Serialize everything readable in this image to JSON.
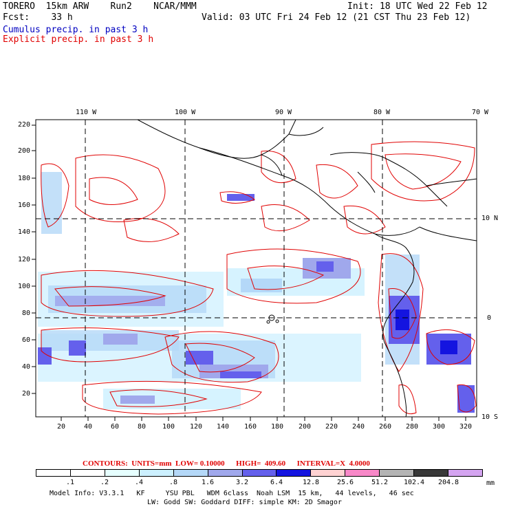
{
  "header": {
    "model_line": "TORERO  15km ARW    Run2    NCAR/MMM",
    "init_line": "Init: 18 UTC Wed 22 Feb 12",
    "fcst_line": "Fcst:    33 h",
    "valid_line": "Valid: 03 UTC Fri 24 Feb 12 (21 CST Thu 23 Feb 12)",
    "legend_cumulus": "Cumulus precip. in past 3 h",
    "legend_explicit": "Explicit precip. in past 3 h"
  },
  "map": {
    "top_longitude_labels": [
      "110 W",
      "100 W",
      "90 W",
      "80 W",
      "70 W"
    ],
    "right_latitude_labels": [
      "10 N",
      "0",
      "10 S"
    ],
    "y_grid_labels": [
      "220",
      "200",
      "180",
      "160",
      "140",
      "120",
      "100",
      "80",
      "60",
      "40",
      "20"
    ],
    "x_grid_labels": [
      "20",
      "40",
      "60",
      "80",
      "100",
      "120",
      "140",
      "160",
      "180",
      "200",
      "220",
      "240",
      "260",
      "280",
      "300",
      "320"
    ],
    "colors": {
      "contour": "#e00000",
      "coast": "#000000",
      "grid": "#000000"
    }
  },
  "contours_info": {
    "label": "CONTOURS:  UNITS=mm  LOW= 0.10000      HIGH=  409.60      INTERVAL=X  4.0000"
  },
  "colorbar": {
    "levels": [
      ".1",
      ".2",
      ".4",
      ".8",
      "1.6",
      "3.2",
      "6.4",
      "12.8",
      "25.6",
      "51.2",
      "102.4",
      "204.8"
    ],
    "unit": "mm",
    "colors": [
      "#ffffff",
      "#ffffff",
      "#e6ffff",
      "#ccf0ff",
      "#b4d8f8",
      "#a0a8ec",
      "#6460ec",
      "#1414e0",
      "#ffd2d2",
      "#f888c8",
      "#b4b4b4",
      "#383838",
      "#d4a4f0"
    ]
  },
  "footer": {
    "line1": "Model Info: V3.3.1   KF     YSU PBL   WDM 6class  Noah LSM  15 km,   44 levels,   46 sec",
    "line2": "LW: Godd SW: Goddard DIFF: simple KM: 2D Smagor"
  }
}
